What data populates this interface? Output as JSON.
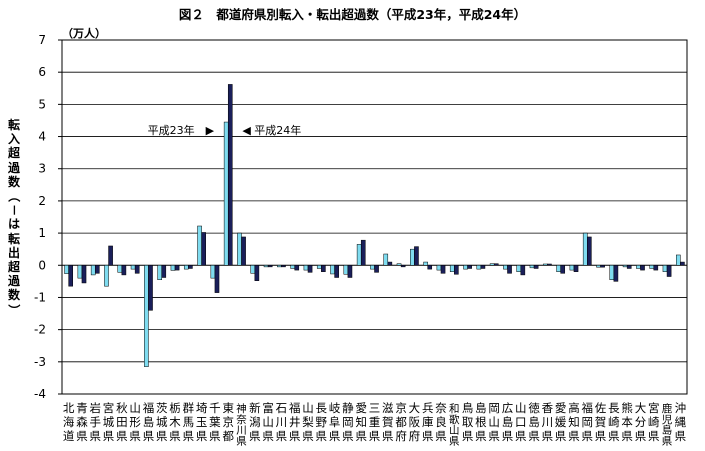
{
  "chart_data": {
    "type": "bar",
    "title": "図２　都道府県別転入・転出超過数（平成23年，平成24年）",
    "unit": "（万人）",
    "ylabel": "転入超過数（－は転出超過数）",
    "ylim": [
      -4,
      7
    ],
    "yticks": [
      "7",
      "6",
      "5",
      "4",
      "3",
      "2",
      "1",
      "0",
      "-1",
      "-2",
      "-3",
      "-4"
    ],
    "grid": true,
    "categories": [
      "北海道",
      "青森県",
      "岩手県",
      "宮城県",
      "秋田県",
      "山形県",
      "福島県",
      "茨城県",
      "栃木県",
      "群馬県",
      "埼玉県",
      "千葉県",
      "東京都",
      "神奈川県",
      "新潟県",
      "富山県",
      "石川県",
      "福井県",
      "山梨県",
      "長野県",
      "岐阜県",
      "静岡県",
      "愛知県",
      "三重県",
      "滋賀県",
      "京都府",
      "大阪府",
      "兵庫県",
      "奈良県",
      "和歌山県",
      "鳥取県",
      "島根県",
      "岡山県",
      "広島県",
      "山口県",
      "徳島県",
      "香川県",
      "愛媛県",
      "高知県",
      "福岡県",
      "佐賀県",
      "長崎県",
      "熊本県",
      "大分県",
      "宮崎県",
      "鹿児島県",
      "沖縄県"
    ],
    "series": [
      {
        "name": "平成23年",
        "color": "#7fdcf0",
        "values": [
          -0.26,
          -0.4,
          -0.3,
          -0.65,
          -0.22,
          -0.12,
          -3.15,
          -0.45,
          -0.16,
          -0.12,
          1.22,
          -0.4,
          4.45,
          1.0,
          -0.25,
          -0.05,
          -0.05,
          -0.1,
          -0.15,
          -0.1,
          -0.27,
          -0.28,
          0.65,
          -0.12,
          0.35,
          0.05,
          0.5,
          0.1,
          -0.15,
          -0.2,
          -0.12,
          -0.12,
          0.05,
          -0.12,
          -0.2,
          -0.08,
          0.04,
          -0.2,
          -0.15,
          1.0,
          -0.06,
          -0.45,
          -0.05,
          -0.1,
          -0.1,
          -0.2,
          0.32
        ]
      },
      {
        "name": "平成24年",
        "color": "#1a1f5a",
        "values": [
          -0.65,
          -0.55,
          -0.25,
          0.6,
          -0.3,
          -0.25,
          -1.4,
          -0.38,
          -0.15,
          -0.1,
          1.02,
          -0.85,
          5.62,
          0.88,
          -0.48,
          -0.05,
          -0.05,
          -0.15,
          -0.22,
          -0.2,
          -0.38,
          -0.38,
          0.78,
          -0.22,
          0.1,
          -0.05,
          0.58,
          -0.12,
          -0.25,
          -0.28,
          -0.1,
          -0.1,
          0.05,
          -0.25,
          -0.3,
          -0.1,
          0.04,
          -0.25,
          -0.2,
          0.88,
          -0.06,
          -0.5,
          -0.1,
          -0.15,
          -0.15,
          -0.35,
          0.1
        ]
      }
    ],
    "annotations": [
      {
        "text": "平成23年",
        "marker": "▶",
        "series": 0,
        "category": 12,
        "value": 4.2
      },
      {
        "text": "平成24年",
        "marker": "◀",
        "series": 1,
        "category": 12,
        "value": 4.2
      }
    ]
  }
}
